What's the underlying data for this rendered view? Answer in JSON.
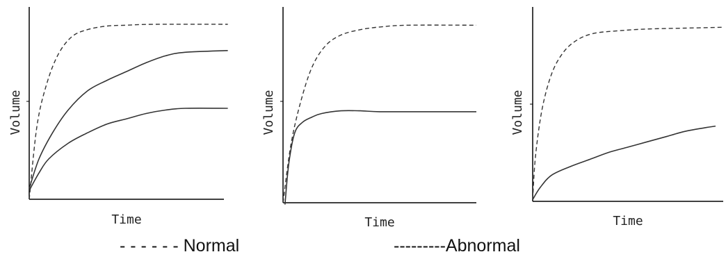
{
  "legend": {
    "normal": "- - - - - - Normal",
    "abnormal": "---------Abnormal"
  },
  "chart_data": [
    {
      "type": "line",
      "xlabel": "Time",
      "ylabel": "Volume",
      "xlim": [
        0,
        10
      ],
      "ylim": [
        0,
        10
      ],
      "grid": false,
      "series": [
        {
          "style": "dashed",
          "values": [
            [
              0,
              0
            ],
            [
              0.4,
              4.2
            ],
            [
              0.9,
              6.6
            ],
            [
              1.5,
              8.3
            ],
            [
              2.2,
              9.3
            ],
            [
              3,
              9.7
            ],
            [
              4,
              9.9
            ],
            [
              5,
              9.95
            ],
            [
              6.5,
              10
            ],
            [
              10.2,
              10
            ]
          ]
        },
        {
          "style": "solid",
          "values": [
            [
              0,
              0.6
            ],
            [
              0.5,
              2.3
            ],
            [
              1.2,
              3.8
            ],
            [
              2,
              5.1
            ],
            [
              3,
              6.2
            ],
            [
              4,
              6.8
            ],
            [
              5,
              7.3
            ],
            [
              6,
              7.8
            ],
            [
              7,
              8.2
            ],
            [
              8,
              8.4
            ],
            [
              10.2,
              8.5
            ]
          ]
        },
        {
          "style": "solid",
          "values": [
            [
              0,
              0.5
            ],
            [
              0.5,
              1.5
            ],
            [
              1,
              2.3
            ],
            [
              2,
              3.2
            ],
            [
              3,
              3.8
            ],
            [
              4,
              4.3
            ],
            [
              5,
              4.6
            ],
            [
              6,
              4.9
            ],
            [
              7,
              5.1
            ],
            [
              8,
              5.2
            ],
            [
              10.2,
              5.2
            ]
          ]
        }
      ]
    },
    {
      "type": "line",
      "xlabel": "Time",
      "ylabel": "Volume",
      "xlim": [
        0,
        10
      ],
      "ylim": [
        0,
        10
      ],
      "grid": false,
      "series": [
        {
          "style": "dashed",
          "values": [
            [
              0,
              0
            ],
            [
              0.4,
              3.2
            ],
            [
              0.9,
              5.6
            ],
            [
              1.5,
              7.6
            ],
            [
              2.2,
              8.8
            ],
            [
              3,
              9.4
            ],
            [
              4,
              9.7
            ],
            [
              5,
              9.85
            ],
            [
              6.5,
              9.95
            ],
            [
              10,
              9.95
            ]
          ]
        },
        {
          "style": "solid",
          "values": [
            [
              0.1,
              -0.1
            ],
            [
              0.3,
              2.2
            ],
            [
              0.6,
              3.9
            ],
            [
              1,
              4.5
            ],
            [
              1.5,
              4.8
            ],
            [
              2,
              5
            ],
            [
              3,
              5.15
            ],
            [
              4,
              5.15
            ],
            [
              5,
              5.1
            ],
            [
              7,
              5.1
            ],
            [
              10,
              5.1
            ]
          ]
        }
      ]
    },
    {
      "type": "line",
      "xlabel": "Time",
      "ylabel": "Volume",
      "xlim": [
        0,
        10
      ],
      "ylim": [
        0,
        10
      ],
      "grid": false,
      "series": [
        {
          "style": "dashed",
          "values": [
            [
              0,
              0.1
            ],
            [
              0.15,
              2.6
            ],
            [
              0.5,
              5.3
            ],
            [
              1,
              7.3
            ],
            [
              1.6,
              8.5
            ],
            [
              2.3,
              9.2
            ],
            [
              3.2,
              9.6
            ],
            [
              4.5,
              9.75
            ],
            [
              6,
              9.85
            ],
            [
              8,
              9.9
            ],
            [
              10,
              9.95
            ]
          ]
        },
        {
          "style": "solid",
          "values": [
            [
              0,
              0.1
            ],
            [
              0.4,
              0.8
            ],
            [
              1,
              1.5
            ],
            [
              2,
              2
            ],
            [
              3,
              2.4
            ],
            [
              4,
              2.8
            ],
            [
              5,
              3.1
            ],
            [
              6,
              3.4
            ],
            [
              7,
              3.7
            ],
            [
              8,
              4
            ],
            [
              9,
              4.2
            ],
            [
              9.6,
              4.3
            ]
          ]
        }
      ]
    }
  ]
}
